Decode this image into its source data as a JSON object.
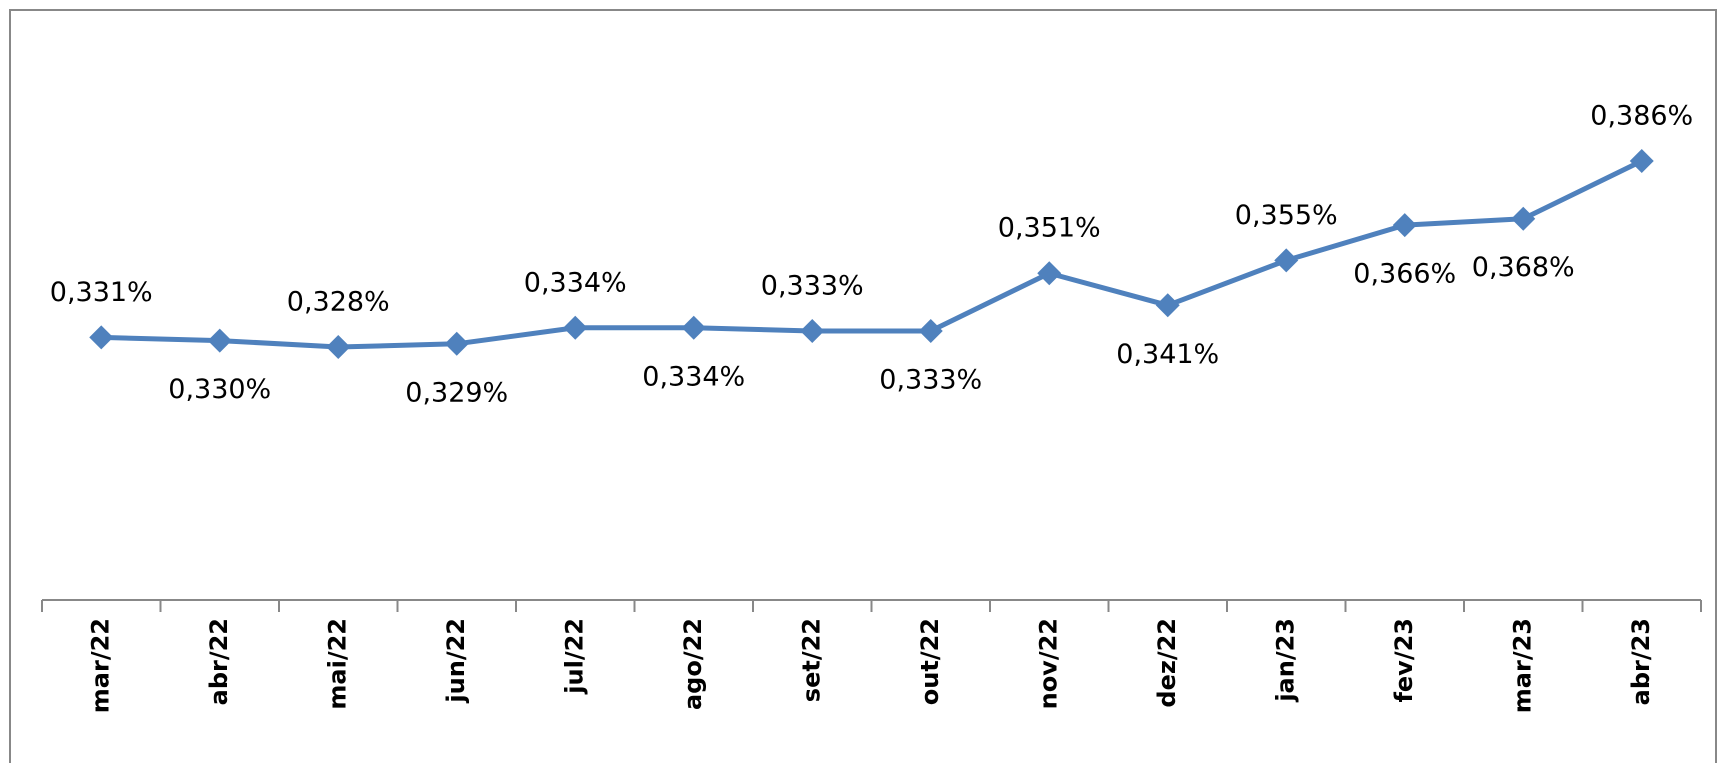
{
  "chart_data": {
    "type": "line",
    "categories": [
      "mar/22",
      "abr/22",
      "mai/22",
      "jun/22",
      "jul/22",
      "ago/22",
      "set/22",
      "out/22",
      "nov/22",
      "dez/22",
      "jan/23",
      "fev/23",
      "mar/23",
      "abr/23"
    ],
    "values": [
      0.331,
      0.33,
      0.328,
      0.329,
      0.334,
      0.334,
      0.333,
      0.333,
      0.351,
      0.341,
      0.355,
      0.366,
      0.368,
      0.386
    ],
    "value_labels": [
      "0,331%",
      "0,330%",
      "0,328%",
      "0,329%",
      "0,334%",
      "0,334%",
      "0,333%",
      "0,333%",
      "0,351%",
      "0,341%",
      "0,355%",
      "0,366%",
      "0,368%",
      "0,386%"
    ],
    "color": "#4f81bd"
  }
}
